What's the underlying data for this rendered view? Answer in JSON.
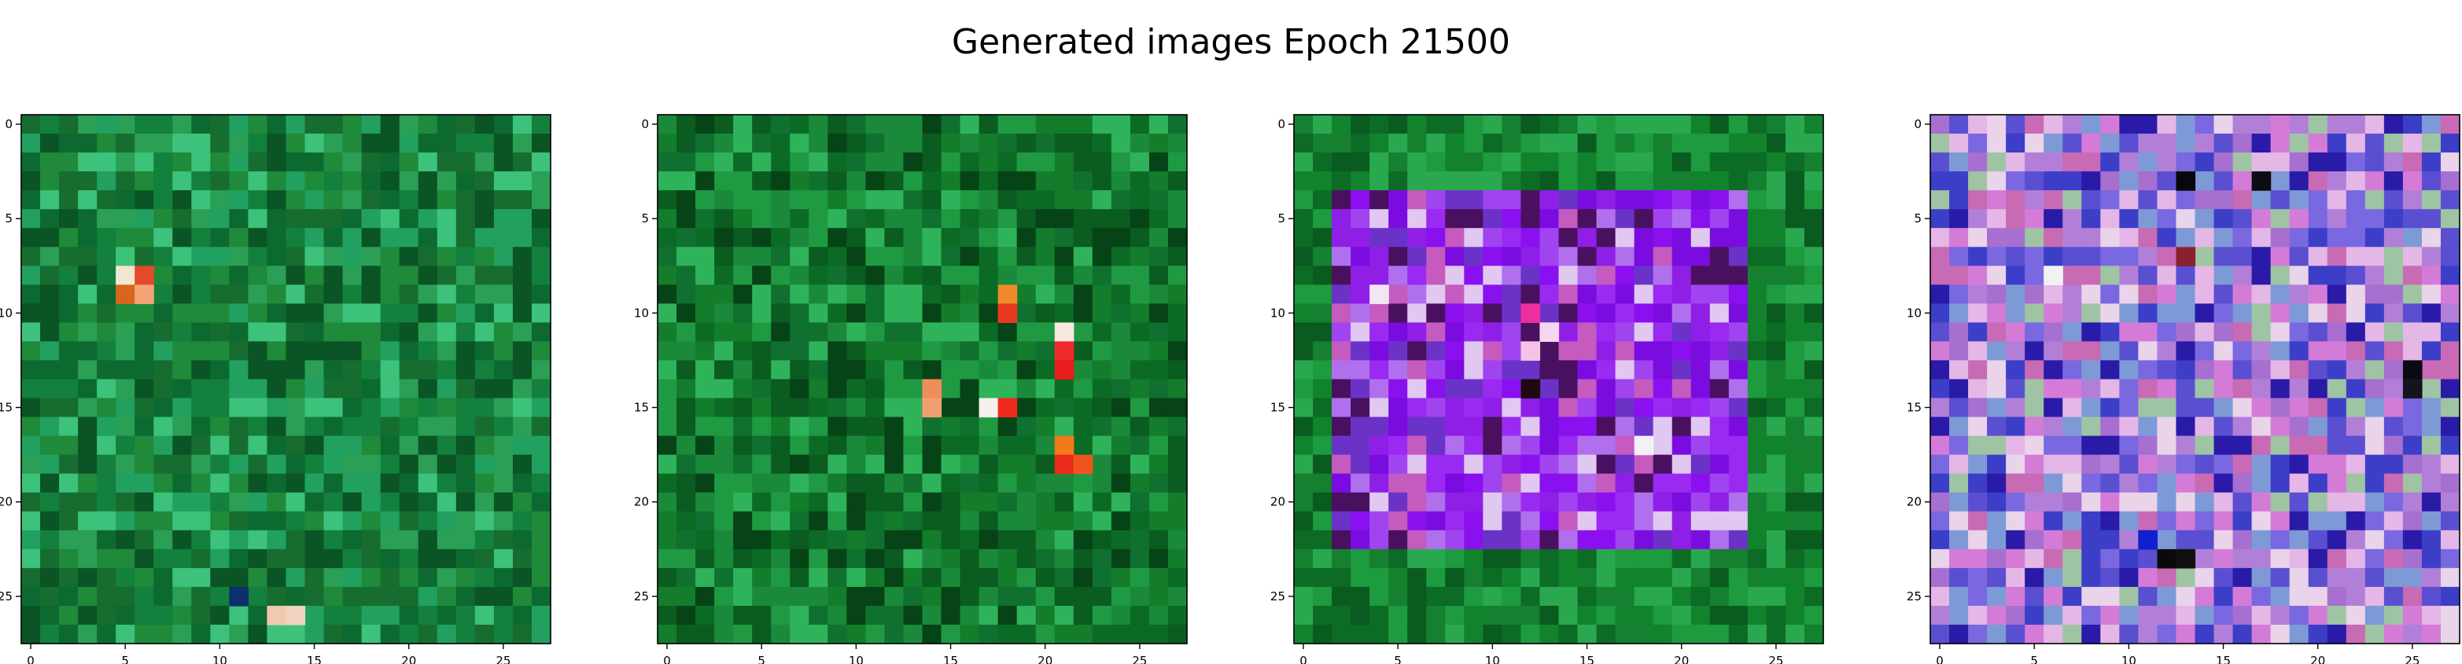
{
  "figure_title": "Generated images Epoch 21500",
  "colors": {
    "axis": "#000000",
    "background": "#ffffff"
  },
  "chart_data": [
    {
      "type": "heatmap",
      "grid": [
        28,
        28
      ],
      "xlim": [
        -0.5,
        27.5
      ],
      "ylim": [
        27.5,
        -0.5
      ],
      "xticks": [
        0,
        5,
        10,
        15,
        20,
        25
      ],
      "yticks": [
        0,
        5,
        10,
        15,
        20,
        25
      ],
      "tick_labels": [
        "0",
        "5",
        "10",
        "15",
        "20",
        "25"
      ],
      "palette": [
        "#1f8a3a",
        "#13803d",
        "#2a9f55",
        "#0c6a30",
        "#3cc27a",
        "#166d2f",
        "#22a060",
        "#0a5425"
      ],
      "highlights": [
        {
          "row": 8,
          "col": 5,
          "color": "#f1e6d2"
        },
        {
          "row": 8,
          "col": 6,
          "color": "#e34a2a"
        },
        {
          "row": 9,
          "col": 5,
          "color": "#d9641c"
        },
        {
          "row": 9,
          "col": 6,
          "color": "#f4a377"
        },
        {
          "row": 26,
          "col": 13,
          "color": "#f1c9ae"
        },
        {
          "row": 26,
          "col": 14,
          "color": "#efd3c0"
        },
        {
          "row": 25,
          "col": 11,
          "color": "#0d2f6d"
        }
      ]
    },
    {
      "type": "heatmap",
      "grid": [
        28,
        28
      ],
      "xlim": [
        -0.5,
        27.5
      ],
      "ylim": [
        27.5,
        -0.5
      ],
      "xticks": [
        0,
        5,
        10,
        15,
        20,
        25
      ],
      "yticks": [
        0,
        5,
        10,
        15,
        20,
        25
      ],
      "tick_labels": [
        "0",
        "5",
        "10",
        "15",
        "20",
        "25"
      ],
      "palette": [
        "#137d2c",
        "#0b6b25",
        "#1f9a43",
        "#0a5c20",
        "#2fb35a",
        "#0f7030",
        "#1a8a3a",
        "#064316"
      ],
      "highlights": [
        {
          "row": 9,
          "col": 18,
          "color": "#f08a2c"
        },
        {
          "row": 10,
          "col": 18,
          "color": "#e8391e"
        },
        {
          "row": 11,
          "col": 21,
          "color": "#f4e9dc"
        },
        {
          "row": 12,
          "col": 21,
          "color": "#f02a2a"
        },
        {
          "row": 13,
          "col": 21,
          "color": "#e81c1c"
        },
        {
          "row": 14,
          "col": 14,
          "color": "#f08d5a"
        },
        {
          "row": 15,
          "col": 14,
          "color": "#f0a070"
        },
        {
          "row": 15,
          "col": 17,
          "color": "#f4f0ea"
        },
        {
          "row": 15,
          "col": 18,
          "color": "#ee2a1e"
        },
        {
          "row": 17,
          "col": 21,
          "color": "#f27a1a"
        },
        {
          "row": 18,
          "col": 21,
          "color": "#ea2b18"
        },
        {
          "row": 18,
          "col": 22,
          "color": "#f0541e"
        }
      ]
    },
    {
      "type": "heatmap",
      "grid": [
        28,
        28
      ],
      "xlim": [
        -0.5,
        27.5
      ],
      "ylim": [
        27.5,
        -0.5
      ],
      "xticks": [
        0,
        5,
        10,
        15,
        20,
        25
      ],
      "yticks": [
        0,
        5,
        10,
        15,
        20,
        25
      ],
      "tick_labels": [
        "0",
        "5",
        "10",
        "15",
        "20",
        "25"
      ],
      "palette": [
        "#11832d",
        "#0c6b25",
        "#1e9a3f",
        "#0a5b20",
        "#2aa84f",
        "#158030"
      ],
      "inner_palette": [
        "#8a10f0",
        "#9a2af2",
        "#7a0ce0",
        "#a044f0",
        "#8f1fe6",
        "#b070ee",
        "#6b32c8",
        "#c55abf",
        "#e0c8f0",
        "#4a1060"
      ],
      "frame": {
        "row_from": 4,
        "row_to": 22,
        "col_from": 2,
        "col_to": 23
      },
      "highlights": [
        {
          "row": 9,
          "col": 4,
          "color": "#f0e6f4"
        },
        {
          "row": 10,
          "col": 12,
          "color": "#ee2ea0"
        },
        {
          "row": 11,
          "col": 13,
          "color": "#f4d6ee"
        },
        {
          "row": 14,
          "col": 12,
          "color": "#200810"
        },
        {
          "row": 17,
          "col": 18,
          "color": "#f3f0f8"
        },
        {
          "row": 12,
          "col": 12,
          "color": "#f4c2e4"
        }
      ]
    },
    {
      "type": "heatmap",
      "grid": [
        28,
        28
      ],
      "xlim": [
        -0.5,
        27.5
      ],
      "ylim": [
        27.5,
        -0.5
      ],
      "xticks": [
        0,
        5,
        10,
        15,
        20,
        25
      ],
      "yticks": [
        0,
        5,
        10,
        15,
        20,
        25
      ],
      "tick_labels": [
        "0",
        "5",
        "10",
        "15",
        "20",
        "25"
      ],
      "palette": [
        "#5a4fd0",
        "#7a68e0",
        "#b27fd8",
        "#d47bd8",
        "#e4b7e6",
        "#9ec4a4",
        "#3c3ec8",
        "#c86ab4",
        "#e9d4ea",
        "#7d9ad6",
        "#2a1aa8",
        "#a66fd0"
      ],
      "highlights": [
        {
          "row": 3,
          "col": 13,
          "color": "#08080c"
        },
        {
          "row": 3,
          "col": 17,
          "color": "#0c0c14"
        },
        {
          "row": 8,
          "col": 6,
          "color": "#f2f2f2"
        },
        {
          "row": 7,
          "col": 13,
          "color": "#8a2030"
        },
        {
          "row": 13,
          "col": 25,
          "color": "#0a0a12"
        },
        {
          "row": 14,
          "col": 25,
          "color": "#14141e"
        },
        {
          "row": 23,
          "col": 12,
          "color": "#0a0a0a"
        },
        {
          "row": 23,
          "col": 13,
          "color": "#101010"
        },
        {
          "row": 22,
          "col": 11,
          "color": "#0f20d0"
        }
      ]
    }
  ]
}
